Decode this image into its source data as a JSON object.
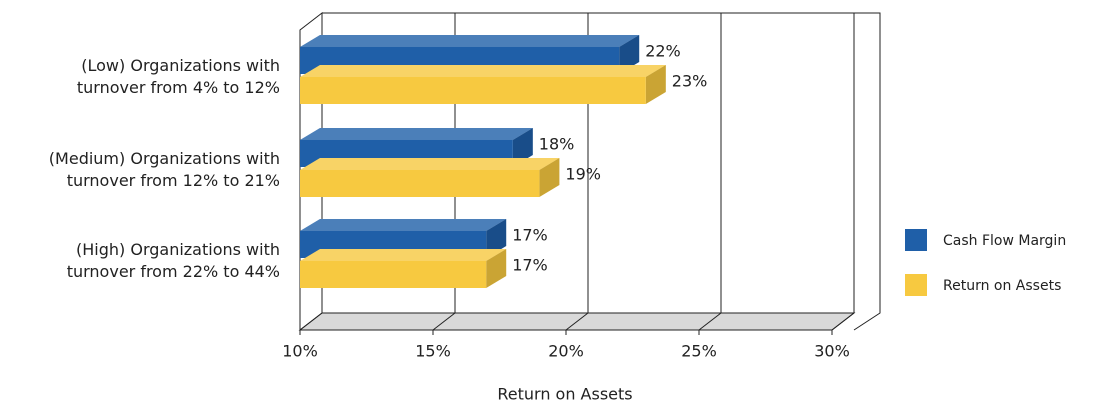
{
  "chart_data": {
    "type": "bar",
    "orientation": "horizontal",
    "categories": [
      "(Low) Organizations with\nturnover from 4% to 12%",
      "(Medium) Organizations with\nturnover from 12% to 21%",
      "(High) Organizations with\nturnover from 22% to 44%"
    ],
    "series": [
      {
        "name": "Cash Flow Margin",
        "color": "#1f5fa8",
        "values": [
          22,
          18,
          17
        ],
        "value_labels": [
          "22%",
          "18%",
          "17%"
        ]
      },
      {
        "name": "Return on Assets",
        "color": "#f7c940",
        "values": [
          23,
          19,
          17
        ],
        "value_labels": [
          "23%",
          "19%",
          "17%"
        ]
      }
    ],
    "xlabel": "Return on Assets",
    "xlim": [
      10,
      30
    ],
    "xticks": [
      {
        "value": 10,
        "label": "10%"
      },
      {
        "value": 15,
        "label": "15%"
      },
      {
        "value": 20,
        "label": "20%"
      },
      {
        "value": 25,
        "label": "25%"
      },
      {
        "value": 30,
        "label": "30%"
      }
    ],
    "grid": true,
    "legend": "right"
  }
}
